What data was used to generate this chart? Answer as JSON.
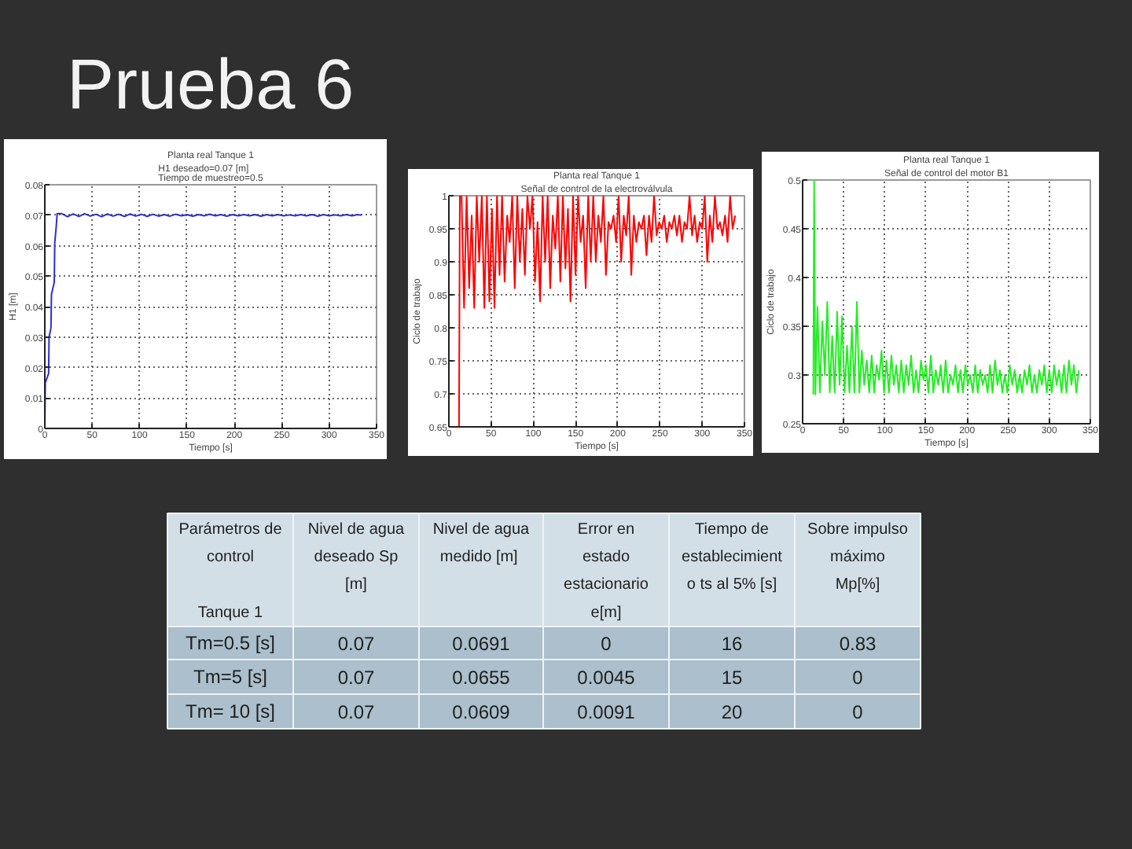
{
  "chart_data": [
    {
      "type": "other",
      "title": "Prueba 6"
    },
    {
      "type": "line",
      "title": "Planta real Tanque 1",
      "subtitle": "H1 deseado=0.07 [m]\nTiempo de muestreo=0.5",
      "xlabel": "Tiempo [s]",
      "ylabel": "H1 [m]",
      "xlim": [
        0,
        350
      ],
      "ylim": [
        0,
        0.08
      ],
      "xticks": [
        0,
        50,
        100,
        150,
        200,
        250,
        300,
        350
      ],
      "yticks": [
        0,
        0.01,
        0.02,
        0.03,
        0.04,
        0.05,
        0.06,
        0.07,
        0.08
      ],
      "grid": true,
      "x": [
        0,
        0.5,
        4,
        4.5,
        6.5,
        7,
        10,
        10.5,
        12,
        13,
        18,
        24,
        30,
        36,
        42,
        48,
        54,
        60,
        66,
        72,
        78,
        84,
        90,
        96,
        102,
        108,
        114,
        120,
        126,
        132,
        138,
        144,
        150,
        156,
        162,
        168,
        174,
        180,
        186,
        192,
        198,
        204,
        210,
        216,
        222,
        228,
        234,
        240,
        246,
        252,
        258,
        264,
        270,
        276,
        282,
        288,
        294,
        300,
        306,
        312,
        318,
        324,
        330,
        334
      ],
      "series": [
        {
          "color": "#2f2fcc",
          "values": [
            0,
            0.015,
            0.018,
            0.03,
            0.033,
            0.044,
            0.048,
            0.061,
            0.066,
            0.0705,
            0.0705,
            0.0695,
            0.0704,
            0.0696,
            0.0705,
            0.0697,
            0.0703,
            0.0695,
            0.0704,
            0.0697,
            0.0703,
            0.0696,
            0.0704,
            0.0697,
            0.0703,
            0.0696,
            0.0703,
            0.0697,
            0.0702,
            0.0697,
            0.0703,
            0.0698,
            0.0702,
            0.0697,
            0.0702,
            0.0698,
            0.0703,
            0.0698,
            0.0702,
            0.0697,
            0.0702,
            0.0698,
            0.0702,
            0.0698,
            0.0702,
            0.0697,
            0.0702,
            0.0698,
            0.0702,
            0.0698,
            0.0701,
            0.0698,
            0.0702,
            0.0698,
            0.0702,
            0.0697,
            0.0702,
            0.0698,
            0.0701,
            0.0698,
            0.0702,
            0.0698,
            0.0702,
            0.07
          ]
        }
      ]
    },
    {
      "type": "line",
      "title": "Planta real Tanque 1",
      "subtitle": "Señal de control de la electroválvula",
      "xlabel": "Tiempo [s]",
      "ylabel": "Ciclo de trabajo",
      "xlim": [
        0,
        350
      ],
      "ylim": [
        0.65,
        1
      ],
      "xticks": [
        0,
        50,
        100,
        150,
        200,
        250,
        300,
        350
      ],
      "yticks": [
        0.65,
        0.7,
        0.75,
        0.8,
        0.85,
        0.9,
        0.95,
        1
      ],
      "grid": true,
      "x": [
        12,
        13,
        15,
        18,
        21,
        24,
        27,
        30,
        33,
        36,
        39,
        42,
        45,
        48,
        51,
        54,
        57,
        60,
        63,
        66,
        69,
        72,
        75,
        78,
        81,
        84,
        87,
        90,
        93,
        96,
        99,
        102,
        105,
        108,
        111,
        114,
        117,
        120,
        123,
        126,
        129,
        132,
        135,
        138,
        141,
        144,
        147,
        150,
        153,
        156,
        159,
        162,
        165,
        168,
        171,
        174,
        177,
        180,
        183,
        186,
        189,
        192,
        195,
        198,
        201,
        204,
        207,
        210,
        213,
        216,
        219,
        222,
        225,
        228,
        231,
        234,
        237,
        240,
        243,
        246,
        249,
        252,
        255,
        258,
        261,
        264,
        267,
        270,
        273,
        276,
        279,
        282,
        285,
        288,
        291,
        294,
        297,
        300,
        303,
        306,
        309,
        312,
        315,
        318,
        321,
        324,
        327,
        330,
        333,
        336,
        339
      ],
      "series": [
        {
          "color": "#ff0000",
          "values": [
            0.65,
            1,
            1,
            0.83,
            1,
            0.86,
            0.97,
            0.83,
            1,
            0.9,
            1,
            0.83,
            1,
            0.84,
            0.98,
            0.83,
            1,
            0.88,
            1,
            0.87,
            0.97,
            0.93,
            1,
            0.86,
            1,
            0.9,
            0.98,
            0.88,
            1,
            0.95,
            1,
            0.87,
            0.96,
            0.84,
            1,
            0.9,
            1,
            0.86,
            0.97,
            0.92,
            1,
            0.87,
            1,
            0.89,
            0.98,
            0.84,
            1,
            0.88,
            1,
            0.93,
            0.97,
            0.86,
            1,
            0.9,
            1,
            0.9,
            0.97,
            0.93,
            1,
            0.88,
            0.96,
            0.95,
            0.97,
            0.93,
            1,
            0.9,
            0.97,
            0.94,
            1,
            0.88,
            0.97,
            0.93,
            0.96,
            0.95,
            0.97,
            0.91,
            0.97,
            0.93,
            1,
            0.94,
            0.96,
            0.95,
            0.97,
            0.93,
            0.96,
            0.95,
            0.97,
            0.94,
            0.97,
            0.93,
            0.96,
            0.95,
            1,
            0.94,
            0.97,
            0.93,
            0.96,
            0.95,
            1,
            0.9,
            0.97,
            0.93,
            1,
            0.95,
            0.96,
            0.94,
            0.97,
            0.93,
            1,
            0.95,
            0.97
          ]
        }
      ]
    },
    {
      "type": "line",
      "title": "Planta real Tanque 1",
      "subtitle": "Señal de control del motor B1",
      "xlabel": "Tiempo [s]",
      "ylabel": "Ciclo de trabajo",
      "xlim": [
        0,
        350
      ],
      "ylim": [
        0.25,
        0.5
      ],
      "xticks": [
        0,
        50,
        100,
        150,
        200,
        250,
        300,
        350
      ],
      "yticks": [
        0.25,
        0.3,
        0.35,
        0.4,
        0.45,
        0.5
      ],
      "grid": true,
      "x": [
        13,
        14,
        15.5,
        18,
        21,
        24,
        27,
        30,
        33,
        36,
        39,
        42,
        45,
        48,
        51,
        54,
        57,
        60,
        63,
        66,
        69,
        72,
        75,
        78,
        81,
        84,
        87,
        90,
        93,
        96,
        99,
        102,
        105,
        108,
        111,
        114,
        117,
        120,
        123,
        126,
        129,
        132,
        135,
        138,
        141,
        144,
        147,
        150,
        153,
        156,
        159,
        162,
        165,
        168,
        171,
        174,
        177,
        180,
        183,
        186,
        189,
        192,
        195,
        198,
        201,
        204,
        207,
        210,
        213,
        216,
        219,
        222,
        225,
        228,
        231,
        234,
        237,
        240,
        243,
        246,
        249,
        252,
        255,
        258,
        261,
        264,
        267,
        270,
        273,
        276,
        279,
        282,
        285,
        288,
        291,
        294,
        297,
        300,
        303,
        306,
        309,
        312,
        315,
        318,
        321,
        324,
        327,
        330,
        333,
        336
      ],
      "series": [
        {
          "color": "#22ee22",
          "values": [
            0.28,
            0.5,
            0.28,
            0.37,
            0.282,
            0.355,
            0.3,
            0.375,
            0.282,
            0.34,
            0.282,
            0.365,
            0.29,
            0.36,
            0.282,
            0.33,
            0.282,
            0.35,
            0.282,
            0.375,
            0.282,
            0.325,
            0.29,
            0.315,
            0.282,
            0.32,
            0.282,
            0.31,
            0.295,
            0.325,
            0.282,
            0.315,
            0.282,
            0.32,
            0.29,
            0.31,
            0.282,
            0.315,
            0.282,
            0.31,
            0.29,
            0.32,
            0.282,
            0.305,
            0.282,
            0.315,
            0.295,
            0.31,
            0.282,
            0.32,
            0.282,
            0.305,
            0.29,
            0.31,
            0.282,
            0.315,
            0.282,
            0.3,
            0.29,
            0.31,
            0.282,
            0.305,
            0.282,
            0.31,
            0.29,
            0.3,
            0.282,
            0.31,
            0.282,
            0.305,
            0.29,
            0.3,
            0.282,
            0.31,
            0.282,
            0.315,
            0.29,
            0.305,
            0.282,
            0.3,
            0.282,
            0.31,
            0.29,
            0.305,
            0.282,
            0.3,
            0.282,
            0.305,
            0.29,
            0.31,
            0.282,
            0.3,
            0.282,
            0.305,
            0.29,
            0.31,
            0.282,
            0.305,
            0.282,
            0.31,
            0.29,
            0.305,
            0.282,
            0.31,
            0.282,
            0.315,
            0.29,
            0.31,
            0.282,
            0.305
          ]
        }
      ]
    },
    {
      "type": "other",
      "annotations": [
        "Parámetros de\ncontrol\n\nTanque 1"
      ],
      "categories": [
        "Nivel de agua\ndeseado Sp\n[m]",
        "Nivel de agua\nmedido  [m]",
        "Error en\nestado\nestacionario\ne[m]",
        "Tiempo de\nestablecimient\no ts al 5% [s]",
        "Sobre impulso\nmáximo\nMp[%]"
      ],
      "y_categories": [
        "Tm=0.5 [s]",
        "Tm=5 [s]",
        "Tm= 10 [s]"
      ],
      "cell_labels": [
        [
          "0.07",
          "0.0691",
          "0",
          "16",
          "0.83"
        ],
        [
          "0.07",
          "0.0655",
          "0.0045",
          "15",
          "0"
        ],
        [
          "0.07",
          "0.0609",
          "0.0091",
          "20",
          "0"
        ]
      ]
    }
  ]
}
